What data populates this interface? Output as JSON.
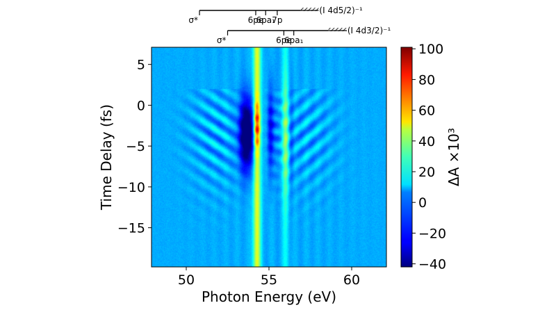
{
  "chart_data": {
    "type": "heatmap",
    "xlabel": "Photon Energy (eV)",
    "ylabel": "Time Delay (fs)",
    "xlim": [
      47.9,
      62.1
    ],
    "ylim": [
      -19.8,
      7.1
    ],
    "x_ticks": [
      50,
      55,
      60
    ],
    "y_ticks": [
      5,
      0,
      -5,
      -10,
      -15
    ],
    "colorbar": {
      "label": "ΔA ×10³",
      "range": [
        -42,
        101
      ],
      "ticks": [
        100,
        80,
        60,
        40,
        20,
        0,
        -20,
        -40
      ],
      "colormap": "jet"
    },
    "features": [
      {
        "center_eV": 54.25,
        "width_eV": 0.18,
        "kind": "strong positive line",
        "peak": 100,
        "peak_delay_fs": -2.5
      },
      {
        "center_eV": 56.0,
        "width_eV": 0.18,
        "kind": "positive line",
        "peak": 40
      },
      {
        "center_eV": 53.7,
        "width_eV": 0.4,
        "kind": "negative band",
        "min": -40,
        "min_delay_fs": -3.5
      },
      {
        "center_eV": 55.1,
        "width_eV": 0.2,
        "kind": "negative band",
        "min": -25
      }
    ],
    "annotations": {
      "series_5_2": {
        "label": "(I 4d5/2)⁻¹",
        "lines": [
          {
            "text": "σ*",
            "x_eV": 50.8
          },
          {
            "text": "6pe",
            "x_eV": 54.2
          },
          {
            "text": "6pa₁",
            "x_eV": 54.8
          },
          {
            "text": "7p",
            "x_eV": 55.5
          }
        ],
        "edge_eV": [
          56.9,
          58.0
        ]
      },
      "series_3_2": {
        "label": "(I 4d3/2)⁻¹",
        "lines": [
          {
            "text": "σ*",
            "x_eV": 52.5
          },
          {
            "text": "6pe",
            "x_eV": 55.9
          },
          {
            "text": "6pa₁",
            "x_eV": 56.5
          }
        ],
        "edge_eV": [
          58.6,
          59.7
        ]
      }
    }
  }
}
